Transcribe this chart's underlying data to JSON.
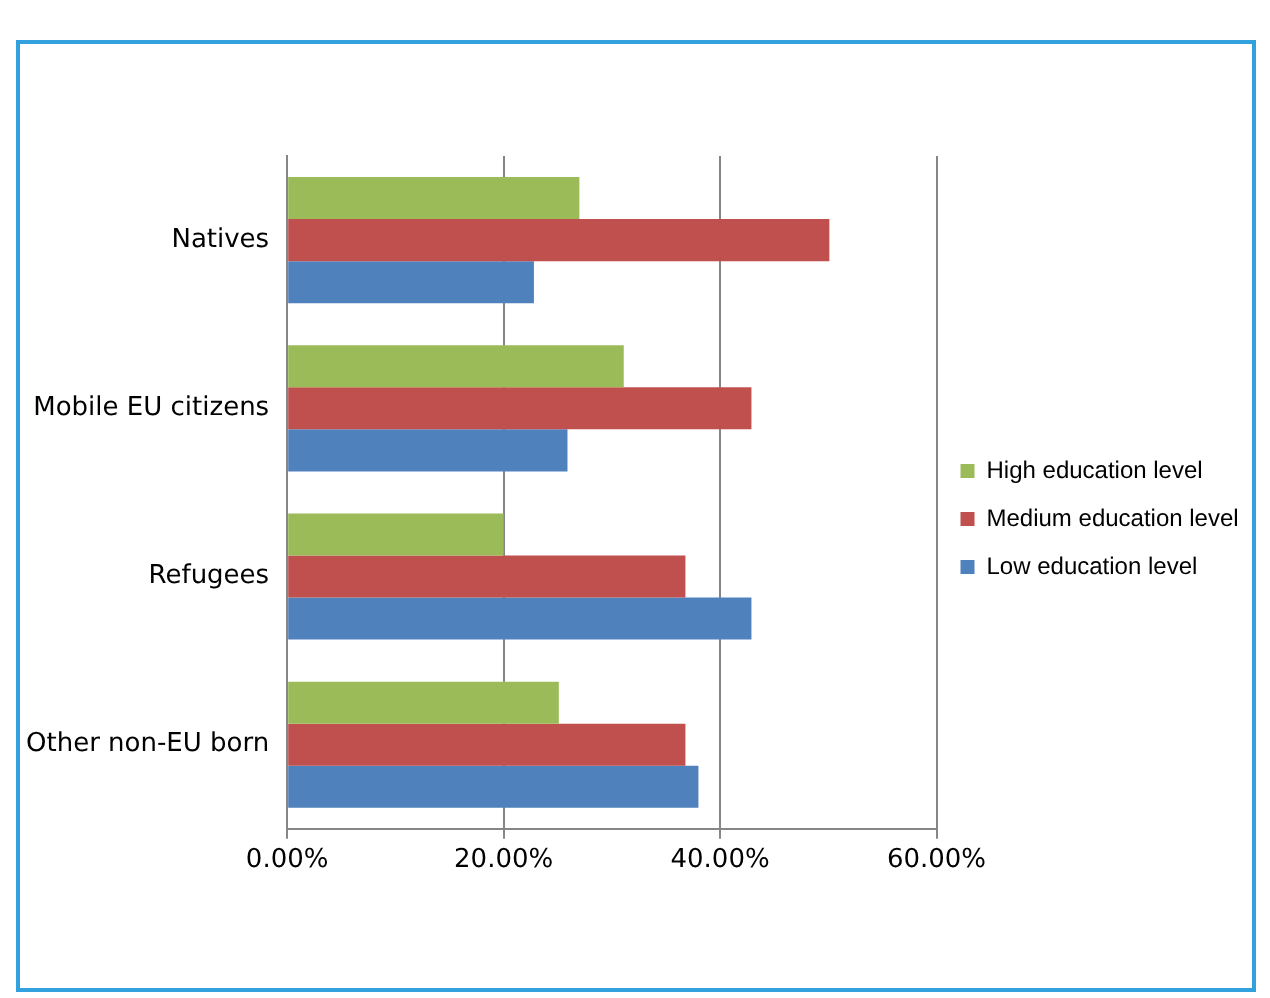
{
  "chart_data": {
    "type": "bar",
    "orientation": "horizontal",
    "categories": [
      "Natives",
      "Mobile EU citizens",
      "Refugees",
      "Other non-EU born"
    ],
    "series": [
      {
        "name": "High education level",
        "color": "#9bbb59",
        "values": [
          27.0,
          31.1,
          20.0,
          25.1
        ]
      },
      {
        "name": "Medium education level",
        "color": "#c0504d",
        "values": [
          50.1,
          42.9,
          36.8,
          36.8
        ]
      },
      {
        "name": "Low education level",
        "color": "#4f81bd",
        "values": [
          22.8,
          25.9,
          42.9,
          38.0
        ]
      }
    ],
    "xlim": [
      0,
      60
    ],
    "xticks": [
      {
        "value": 0,
        "label": "0.00%"
      },
      {
        "value": 20,
        "label": "20.00%"
      },
      {
        "value": 40,
        "label": "40.00%"
      },
      {
        "value": 60,
        "label": "60.00%"
      }
    ],
    "grid": "x",
    "legend": "right"
  }
}
